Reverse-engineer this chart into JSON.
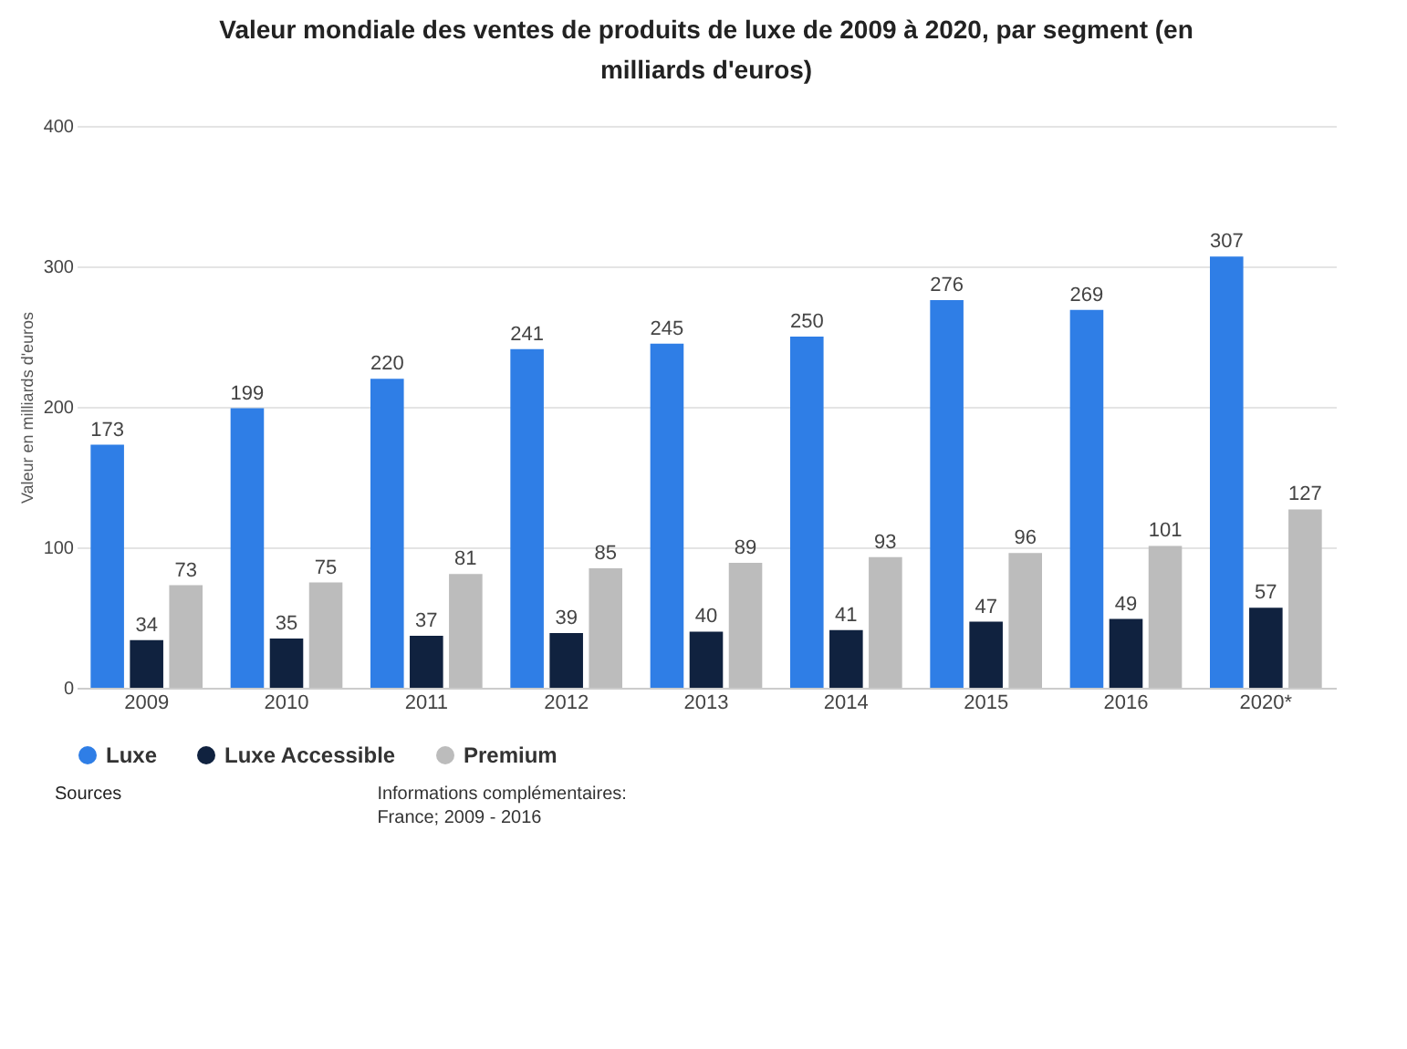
{
  "chart_data": {
    "type": "bar",
    "title": "Valeur mondiale des ventes de produits de luxe de 2009 à 2020, par segment (en milliards d'euros)",
    "ylabel": "Valeur en milliards d'euros",
    "categories": [
      "2009",
      "2010",
      "2011",
      "2012",
      "2013",
      "2014",
      "2015",
      "2016",
      "2020*"
    ],
    "series": [
      {
        "name": "Luxe",
        "color": "#2f7ee6",
        "values": [
          173,
          199,
          220,
          241,
          245,
          250,
          276,
          269,
          307
        ]
      },
      {
        "name": "Luxe Accessible",
        "color": "#10223f",
        "values": [
          34,
          35,
          37,
          39,
          40,
          41,
          47,
          49,
          57
        ]
      },
      {
        "name": "Premium",
        "color": "#bcbcbc",
        "values": [
          73,
          75,
          81,
          85,
          89,
          93,
          96,
          101,
          127
        ]
      }
    ],
    "ylim": [
      0,
      400
    ],
    "yticks": [
      0,
      100,
      200,
      300,
      400
    ],
    "grid": "y",
    "legend": "bottom",
    "data_labels": true,
    "annotations": [
      "Sources",
      "Informations complémentaires:",
      "France; 2009 - 2016"
    ]
  }
}
